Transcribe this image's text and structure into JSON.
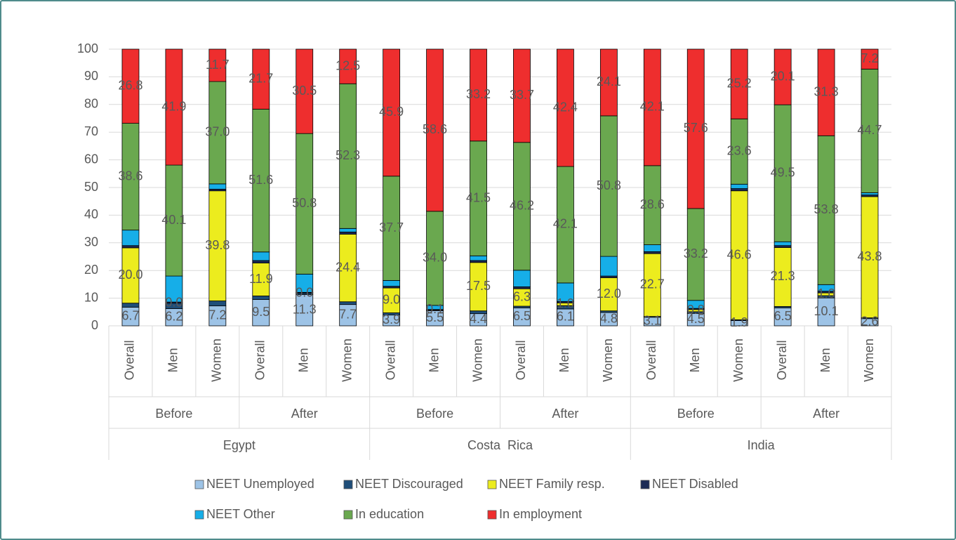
{
  "chart_data": {
    "type": "stacked_bar",
    "categories": [
      "Overall",
      "Men",
      "Women",
      "Overall",
      "Men",
      "Women",
      "Overall",
      "Men",
      "Women",
      "Overall",
      "Men",
      "Women",
      "Overall",
      "Men",
      "Women",
      "Overall",
      "Men",
      "Women"
    ],
    "groups": [
      "Before",
      "After",
      "Before",
      "After",
      "Before",
      "After"
    ],
    "countries": [
      "Egypt",
      "Costa  Rica",
      "India"
    ],
    "ylim": [
      0,
      100
    ],
    "yticks": [
      0,
      10,
      20,
      30,
      40,
      50,
      60,
      70,
      80,
      90,
      100
    ],
    "grid": true,
    "series": [
      {
        "name": "NEET Unemployed",
        "color": "#9dc3e6",
        "values": [
          6.7,
          6.2,
          7.2,
          9.5,
          11.3,
          7.7,
          3.9,
          5.5,
          4.4,
          6.5,
          6.1,
          4.8,
          3.1,
          4.5,
          1.9,
          6.5,
          10.1,
          2.6
        ],
        "value_labels": [
          "6.7",
          "6.2",
          "7.2",
          "9.5",
          "11.3",
          "7.7",
          "3.9",
          "5.5",
          "4.4",
          "6.5",
          "6.1",
          "4.8",
          "3.1",
          "4.5",
          "1.9",
          "6.5",
          "10.1",
          "2.6"
        ]
      },
      {
        "name": "NEET Discouraged",
        "color": "#1f4e79",
        "values": [
          1.5,
          2.0,
          1.8,
          1.3,
          0.5,
          1.0,
          0.8,
          0.2,
          1.0,
          0.6,
          1.2,
          0.6,
          0.3,
          0.6,
          0.3,
          0.5,
          0.8,
          0.3
        ]
      },
      {
        "name": "NEET Family resp.",
        "color": "#ecec1e",
        "values": [
          20.0,
          0.0,
          39.8,
          11.9,
          0.0,
          24.4,
          9.0,
          0.1,
          17.5,
          6.3,
          1.0,
          12.0,
          22.7,
          0.8,
          46.6,
          21.3,
          1.0,
          43.8
        ],
        "value_labels": [
          "20.0",
          "0.0",
          "39.8",
          "11.9",
          "0.0",
          "24.4",
          "9.0",
          "0.1",
          "17.5",
          "6.3",
          "1.0",
          "12.0",
          "22.7",
          "0.8",
          "46.6",
          "21.3",
          "1.0",
          "43.8"
        ]
      },
      {
        "name": "NEET Disabled",
        "color": "#1c2b55",
        "values": [
          0.8,
          0.4,
          0.6,
          0.9,
          0.3,
          0.8,
          0.6,
          0.1,
          0.7,
          0.7,
          0.5,
          0.6,
          0.7,
          0.4,
          0.8,
          0.7,
          0.6,
          0.6
        ]
      },
      {
        "name": "NEET Other",
        "color": "#16aee8",
        "values": [
          5.6,
          9.4,
          1.9,
          3.1,
          6.6,
          1.3,
          2.1,
          1.5,
          1.7,
          6.0,
          6.7,
          7.1,
          2.5,
          2.9,
          1.6,
          1.4,
          2.4,
          0.8
        ]
      },
      {
        "name": "In education",
        "color": "#6aa84f",
        "values": [
          38.6,
          40.1,
          37.0,
          51.6,
          50.8,
          52.3,
          37.7,
          34.0,
          41.5,
          46.2,
          42.1,
          50.8,
          28.6,
          33.2,
          23.6,
          49.5,
          53.8,
          44.7
        ],
        "value_labels": [
          "38.6",
          "40.1",
          "37.0",
          "51.6",
          "50.8",
          "52.3",
          "37.7",
          "34.0",
          "41.5",
          "46.2",
          "42.1",
          "50.8",
          "28.6",
          "33.2",
          "23.6",
          "49.5",
          "53.8",
          "44.7"
        ]
      },
      {
        "name": "In employment",
        "color": "#ee2e2e",
        "values": [
          26.8,
          41.9,
          11.7,
          21.7,
          30.5,
          12.5,
          45.9,
          58.6,
          33.2,
          33.7,
          42.4,
          24.1,
          42.1,
          57.6,
          25.2,
          20.1,
          31.3,
          7.2
        ],
        "value_labels": [
          "26.8",
          "41.9",
          "11.7",
          "21.7",
          "30.5",
          "12.5",
          "45.9",
          "58.6",
          "33.2",
          "33.7",
          "42.4",
          "24.1",
          "42.1",
          "57.6",
          "25.2",
          "20.1",
          "31.3",
          "7.2"
        ]
      }
    ]
  }
}
